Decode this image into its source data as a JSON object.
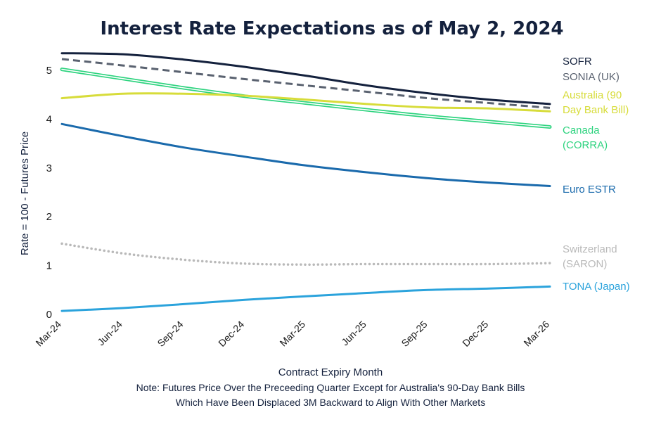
{
  "chart_data": {
    "type": "line",
    "title": "Interest Rate Expectations as of May 2, 2024",
    "xlabel": "Contract Expiry Month",
    "ylabel": "Rate = 100 - Futures Price",
    "note_lines": [
      "Note: Futures Price Over the Preceeding Quarter Except for Australia's 90-Day Bank Bills",
      "Which Have Been Displaced 3M Backward to Align With Other Markets"
    ],
    "categories": [
      "Mar-24",
      "Jun-24",
      "Sep-24",
      "Dec-24",
      "Mar-25",
      "Jun-25",
      "Sep-25",
      "Dec-25",
      "Mar-26"
    ],
    "ylim": [
      0,
      5.5
    ],
    "yticks": [
      "0",
      "1",
      "2",
      "3",
      "4",
      "5"
    ],
    "grid": false,
    "legend": "right-end labels",
    "series": [
      {
        "name": "SOFR",
        "label_lines": [
          "SOFR"
        ],
        "color": "#14213d",
        "style": "solid",
        "values": [
          5.35,
          5.33,
          5.22,
          5.07,
          4.89,
          4.69,
          4.53,
          4.4,
          4.31
        ]
      },
      {
        "name": "SONIA (UK)",
        "label_lines": [
          "SONIA (UK)"
        ],
        "color": "#5a6270",
        "style": "dashed",
        "values": [
          5.23,
          5.1,
          4.96,
          4.82,
          4.69,
          4.56,
          4.43,
          4.33,
          4.23
        ]
      },
      {
        "name": "Australia (90 Day Bank Bill)",
        "label_lines": [
          "Australia (90",
          "Day Bank Bill)"
        ],
        "color": "#d7dc3a",
        "style": "solid",
        "values": [
          4.43,
          4.52,
          4.52,
          4.48,
          4.4,
          4.31,
          4.24,
          4.22,
          4.16
        ]
      },
      {
        "name": "Canada (CORRA)",
        "label_lines": [
          "Canada",
          "(CORRA)"
        ],
        "color": "#2ed37f",
        "style": "double",
        "values": [
          5.02,
          4.83,
          4.64,
          4.47,
          4.33,
          4.19,
          4.06,
          3.95,
          3.84
        ]
      },
      {
        "name": "Euro ESTR",
        "label_lines": [
          "Euro ESTR"
        ],
        "color": "#1a6aac",
        "style": "solid",
        "values": [
          3.9,
          3.65,
          3.42,
          3.23,
          3.05,
          2.91,
          2.79,
          2.7,
          2.63
        ]
      },
      {
        "name": "Switzerland (SARON)",
        "label_lines": [
          "Switzerland",
          "(SARON)"
        ],
        "color": "#b9b9b9",
        "style": "dotted",
        "values": [
          1.45,
          1.25,
          1.12,
          1.04,
          1.02,
          1.03,
          1.03,
          1.03,
          1.05
        ]
      },
      {
        "name": "TONA (Japan)",
        "label_lines": [
          "TONA (Japan)"
        ],
        "color": "#2ba3dc",
        "style": "solid",
        "values": [
          0.07,
          0.13,
          0.21,
          0.3,
          0.37,
          0.44,
          0.5,
          0.53,
          0.57
        ]
      }
    ],
    "colors": {
      "title": "#14213d",
      "text": "#1a1a1a",
      "axis_label": "#14213d"
    }
  }
}
